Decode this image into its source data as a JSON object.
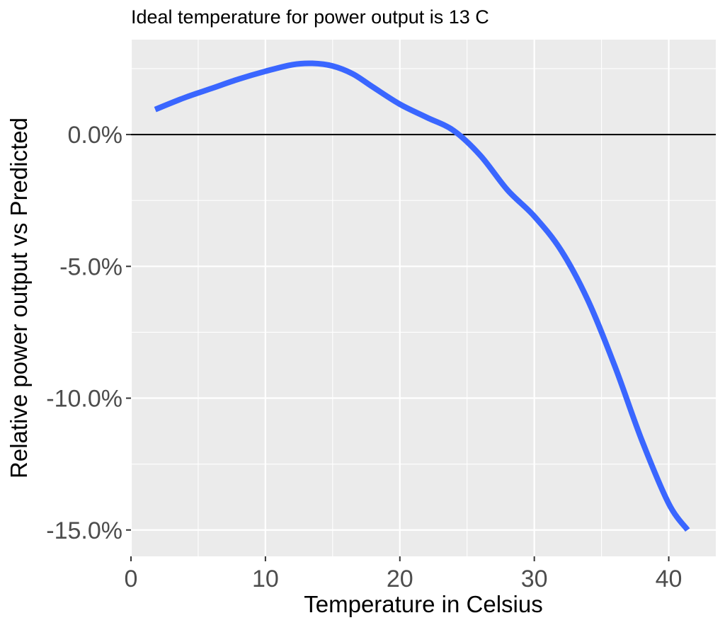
{
  "chart_data": {
    "type": "line",
    "title": "Ideal temperature for power output is 13 C",
    "xlabel": "Temperature in Celsius",
    "ylabel": "Relative power output vs Predicted",
    "xlim": [
      0,
      43.5
    ],
    "ylim": [
      -16,
      3.6
    ],
    "x_ticks": [
      0,
      10,
      20,
      30,
      40
    ],
    "x_tick_labels": [
      "0",
      "10",
      "20",
      "30",
      "40"
    ],
    "y_ticks": [
      0,
      -5,
      -10,
      -15
    ],
    "y_tick_labels": [
      "0.0%",
      "-5.0%",
      "-10.0%",
      "-15.0%"
    ],
    "reference_line_y": 0,
    "grid": true,
    "colors": {
      "line": "#3a66ff",
      "panel": "#ebebeb",
      "reference": "#000000"
    },
    "series": [
      {
        "x": [
          1.8,
          4,
          6,
          8,
          10,
          12,
          13.5,
          15,
          16.5,
          18,
          20,
          22,
          24,
          26,
          28,
          30,
          32,
          34,
          36,
          38,
          40,
          41.4
        ],
        "y": [
          0.95,
          1.4,
          1.75,
          2.1,
          2.4,
          2.65,
          2.7,
          2.6,
          2.3,
          1.8,
          1.15,
          0.65,
          0.15,
          -0.8,
          -2.1,
          -3.1,
          -4.4,
          -6.3,
          -8.8,
          -11.6,
          -14.0,
          -15.0
        ]
      }
    ]
  }
}
